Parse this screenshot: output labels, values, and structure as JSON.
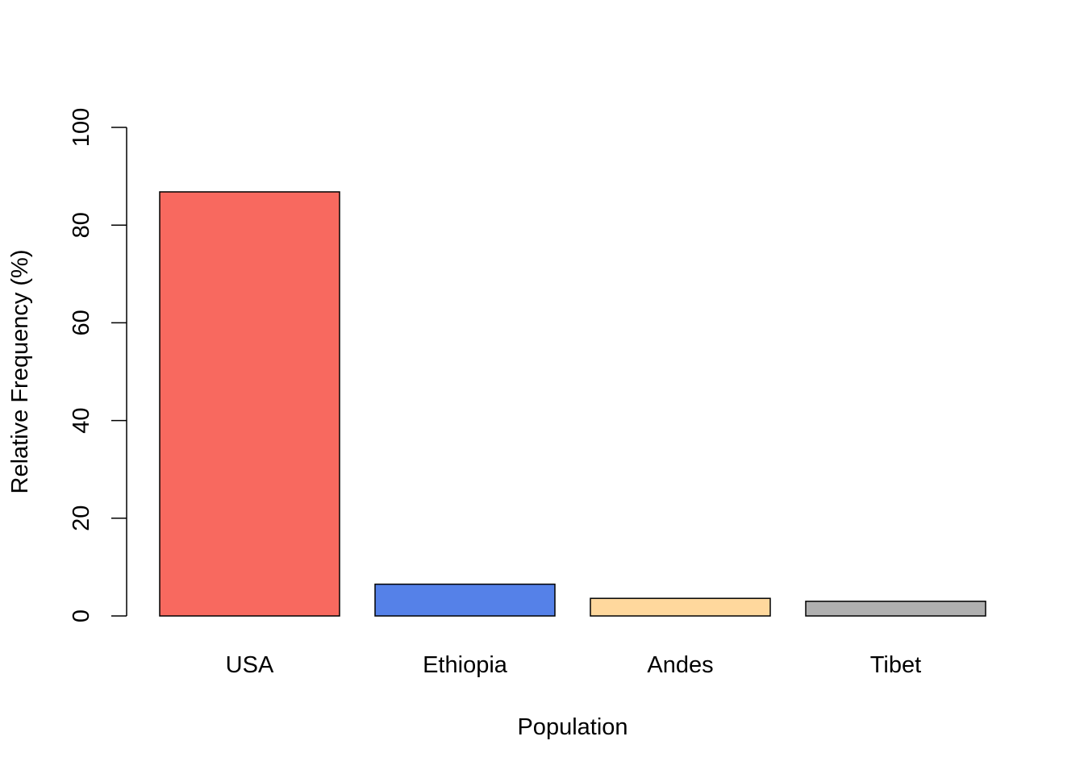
{
  "chart_data": {
    "type": "bar",
    "title": "",
    "xlabel": "Population",
    "ylabel": "Relative Frequency (%)",
    "categories": [
      "USA",
      "Ethiopia",
      "Andes",
      "Tibet"
    ],
    "values": [
      86.8,
      6.5,
      3.6,
      3.0
    ],
    "colors": [
      "#F8695F",
      "#5581E8",
      "#FFD89D",
      "#B0B0B0"
    ],
    "ylim": [
      0,
      100
    ],
    "yticks": [
      0,
      20,
      40,
      60,
      80,
      100
    ],
    "ytick_labels": [
      "0",
      "20",
      "40",
      "60",
      "80",
      "100"
    ],
    "grid": false,
    "legend": "none"
  }
}
